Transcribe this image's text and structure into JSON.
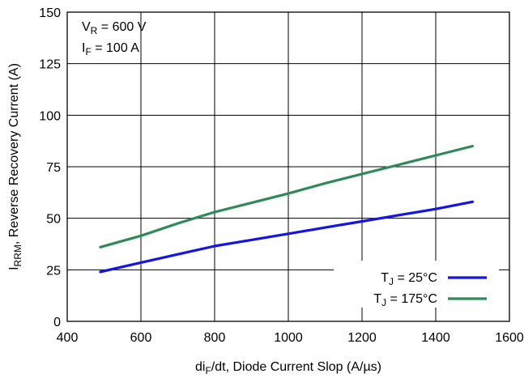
{
  "chart_data": {
    "type": "line",
    "xlabel": {
      "main": "di",
      "sub": "F",
      "rest": "/dt, Diode Current Slop (A/µs)"
    },
    "ylabel": {
      "main": "I",
      "sub": "RRM",
      "rest": ", Reverse Recovery Current (A)"
    },
    "xlim": [
      400,
      1600
    ],
    "ylim": [
      0,
      150
    ],
    "xticks": [
      400,
      600,
      800,
      1000,
      1200,
      1400,
      1600
    ],
    "yticks": [
      0,
      25,
      50,
      75,
      100,
      125,
      150
    ],
    "grid": true,
    "legend_position": "bottom-right",
    "annotations": [
      {
        "main": "V",
        "sub": "R",
        "rest": " = 600 V"
      },
      {
        "main": "I",
        "sub": "F",
        "rest": " = 100 A"
      }
    ],
    "series": [
      {
        "name": {
          "main": "T",
          "sub": "J",
          "rest": " = 25°C"
        },
        "color": "#1414e6",
        "x": [
          490,
          600,
          700,
          800,
          900,
          1000,
          1100,
          1200,
          1300,
          1400,
          1500
        ],
        "y": [
          24,
          28.5,
          32.5,
          36.5,
          39.5,
          42.5,
          45.5,
          48.5,
          51.5,
          54.5,
          58
        ]
      },
      {
        "name": {
          "main": "T",
          "sub": "J",
          "rest": " = 175°C"
        },
        "color": "#2e8b57",
        "x": [
          490,
          600,
          700,
          800,
          900,
          1000,
          1100,
          1200,
          1300,
          1400,
          1500
        ],
        "y": [
          36,
          41.5,
          47.5,
          53,
          57.5,
          62,
          67,
          71.5,
          76,
          80.5,
          85
        ]
      }
    ]
  }
}
